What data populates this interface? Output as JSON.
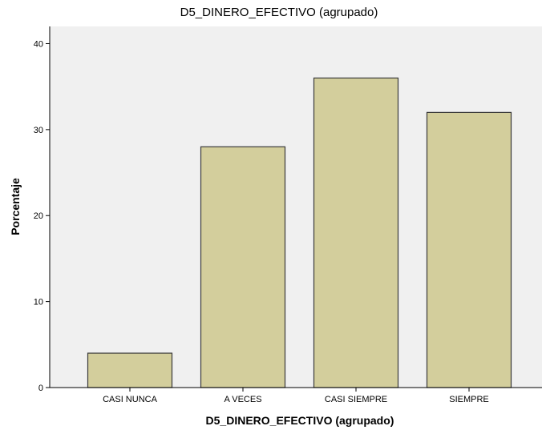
{
  "chart_data": {
    "type": "bar",
    "title": "D5_DINERO_EFECTIVO (agrupado)",
    "xlabel": "D5_DINERO_EFECTIVO (agrupado)",
    "ylabel": "Porcentaje",
    "categories": [
      "CASI NUNCA",
      "A VECES",
      "CASI SIEMPRE",
      "SIEMPRE"
    ],
    "values": [
      4,
      28,
      36,
      32
    ],
    "ylim": [
      0,
      42
    ],
    "yticks": [
      0,
      10,
      20,
      30,
      40
    ],
    "grid": false,
    "legend": "none",
    "colors": {
      "plot_background": "#f0f0f0",
      "bar_fill": "#d3ce9c",
      "bar_stroke": "#3a3a3a",
      "axis": "#000000"
    }
  }
}
